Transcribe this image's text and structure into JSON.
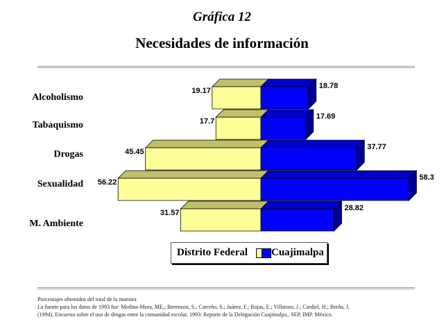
{
  "header": {
    "supertitle": "Gráfica 12",
    "title": "Necesidades de información"
  },
  "chart_data": {
    "type": "bar",
    "orientation": "horizontal-diverging-3d",
    "categories": [
      "Alcoholismo",
      "Tabaquismo",
      "Drogas",
      "Sexualidad",
      "M. Ambiente"
    ],
    "series": [
      {
        "name": "Distrito Federal",
        "values": [
          19.17,
          17.7,
          45.45,
          56.22,
          31.57
        ],
        "color": "#ffff99"
      },
      {
        "name": "Cuajimalpa",
        "values": [
          18.78,
          17.69,
          37.77,
          58.3,
          28.82
        ],
        "color": "#0000ff"
      }
    ],
    "value_labels": {
      "Distrito Federal": [
        "19.17",
        "17.7",
        "45.45",
        "56.22",
        "31.57"
      ],
      "Cuajimalpa": [
        "18.78",
        "17.69",
        "37.77",
        "58.3",
        "28.82"
      ]
    },
    "legend_position": "bottom-center",
    "grid": false
  },
  "legend": {
    "items": [
      {
        "label": "Distrito Federal",
        "color": "#ffff99"
      },
      {
        "label": "Cuajimalpa",
        "color": "#0000ff"
      }
    ]
  },
  "footnotes": {
    "line1": "Porcentajes obtenidos del total de la muestra",
    "line2": "La fuente para los datos de 1993 fue: Medina-Mora, ME,; Berenzon, S.; Carreño, S.; Juárez, F.; Rojas, E.; Villatoro, J.; Cardiel, H.; Breña, J.",
    "line3": "(1994). Encuesta sobre el uso de drogas entre la comunidad escolar, 1993: Reporte de la Delegación Cuajimalpa.. SEP, IMP. México."
  }
}
